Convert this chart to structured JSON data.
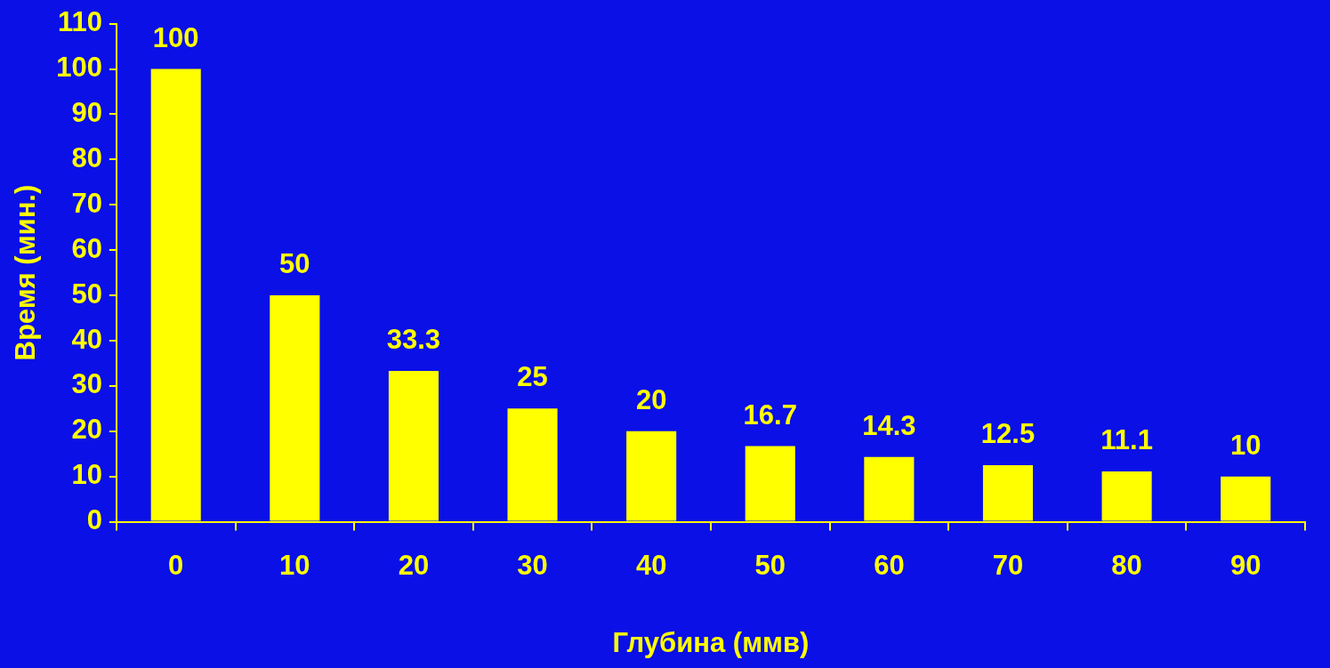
{
  "chart_data": {
    "type": "bar",
    "xlabel": "Глубина (ммв)",
    "ylabel": "Время (мин.)",
    "categories": [
      "0",
      "10",
      "20",
      "30",
      "40",
      "50",
      "60",
      "70",
      "80",
      "90"
    ],
    "values": [
      100,
      50,
      33.3,
      25,
      20,
      16.7,
      14.3,
      12.5,
      11.1,
      10
    ],
    "color": "#ffff00",
    "ylim": [
      0,
      110
    ],
    "yticks": [
      0,
      10,
      20,
      30,
      40,
      50,
      60,
      70,
      80,
      90,
      100,
      110
    ],
    "data_labels": true,
    "grid": false,
    "legend": false
  }
}
